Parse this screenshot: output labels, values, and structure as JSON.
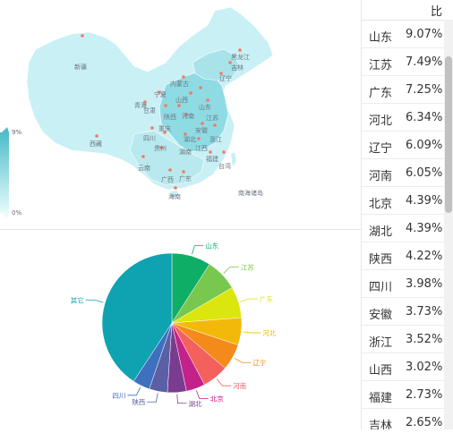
{
  "table": {
    "header": "比",
    "rows": [
      {
        "prov": "山东",
        "val": "9.07%"
      },
      {
        "prov": "江苏",
        "val": "7.49%"
      },
      {
        "prov": "广东",
        "val": "7.25%"
      },
      {
        "prov": "河北",
        "val": "6.34%"
      },
      {
        "prov": "辽宁",
        "val": "6.09%"
      },
      {
        "prov": "河南",
        "val": "6.05%"
      },
      {
        "prov": "北京",
        "val": "4.39%"
      },
      {
        "prov": "湖北",
        "val": "4.39%"
      },
      {
        "prov": "陕西",
        "val": "4.22%"
      },
      {
        "prov": "四川",
        "val": "3.98%"
      },
      {
        "prov": "安徽",
        "val": "3.73%"
      },
      {
        "prov": "浙江",
        "val": "3.52%"
      },
      {
        "prov": "山西",
        "val": "3.02%"
      },
      {
        "prov": "福建",
        "val": "2.73%"
      },
      {
        "prov": "吉林",
        "val": "2.65%"
      }
    ]
  },
  "map": {
    "legend_max": "9%",
    "legend_min": "0%",
    "color_low": "#d8f6fa",
    "color_high": "#4dbccb",
    "labels": {
      "xinjiang": "新疆",
      "xizang": "西藏",
      "heilongjiang": "黑龙江",
      "jilin": "吉林",
      "liaoning": "辽宁",
      "neimenggu": "内蒙古",
      "ningxia": "宁夏",
      "qinghai": "青海",
      "gansu": "甘肃",
      "shaanxi": "陕西",
      "shanxi": "山西",
      "henan": "河南",
      "sichuan": "四川",
      "chongqing": "重庆",
      "hubei": "湖北",
      "anhui": "安徽",
      "jiangxi": "江西",
      "hunan": "湖南",
      "guizhou": "贵州",
      "yunnan": "云南",
      "guangxi": "广西",
      "guangdong": "广东",
      "fujian": "福建",
      "zhejiang": "浙江",
      "taiwan": "台湾",
      "hainan": "海南",
      "nanhai": "南海诸岛",
      "shandong": "山东",
      "jiangsu": "江苏"
    }
  },
  "chart_data": {
    "type": "pie",
    "slices": [
      {
        "name": "山东",
        "value": 9.07,
        "color": "#0fae66"
      },
      {
        "name": "江苏",
        "value": 7.49,
        "color": "#78c74e"
      },
      {
        "name": "广东",
        "value": 7.25,
        "color": "#dbe50e"
      },
      {
        "name": "河北",
        "value": 6.34,
        "color": "#f3b90a"
      },
      {
        "name": "辽宁",
        "value": 6.09,
        "color": "#f38a19"
      },
      {
        "name": "河南",
        "value": 6.05,
        "color": "#f4605c"
      },
      {
        "name": "北京",
        "value": 4.39,
        "color": "#c2228a"
      },
      {
        "name": "湖北",
        "value": 4.39,
        "color": "#7a3c8f"
      },
      {
        "name": "陕西",
        "value": 4.22,
        "color": "#5a5fa6"
      },
      {
        "name": "四川",
        "value": 3.98,
        "color": "#3f6fbf"
      },
      {
        "name": "其它",
        "value": 40.79,
        "color": "#0fa3b1"
      }
    ]
  }
}
